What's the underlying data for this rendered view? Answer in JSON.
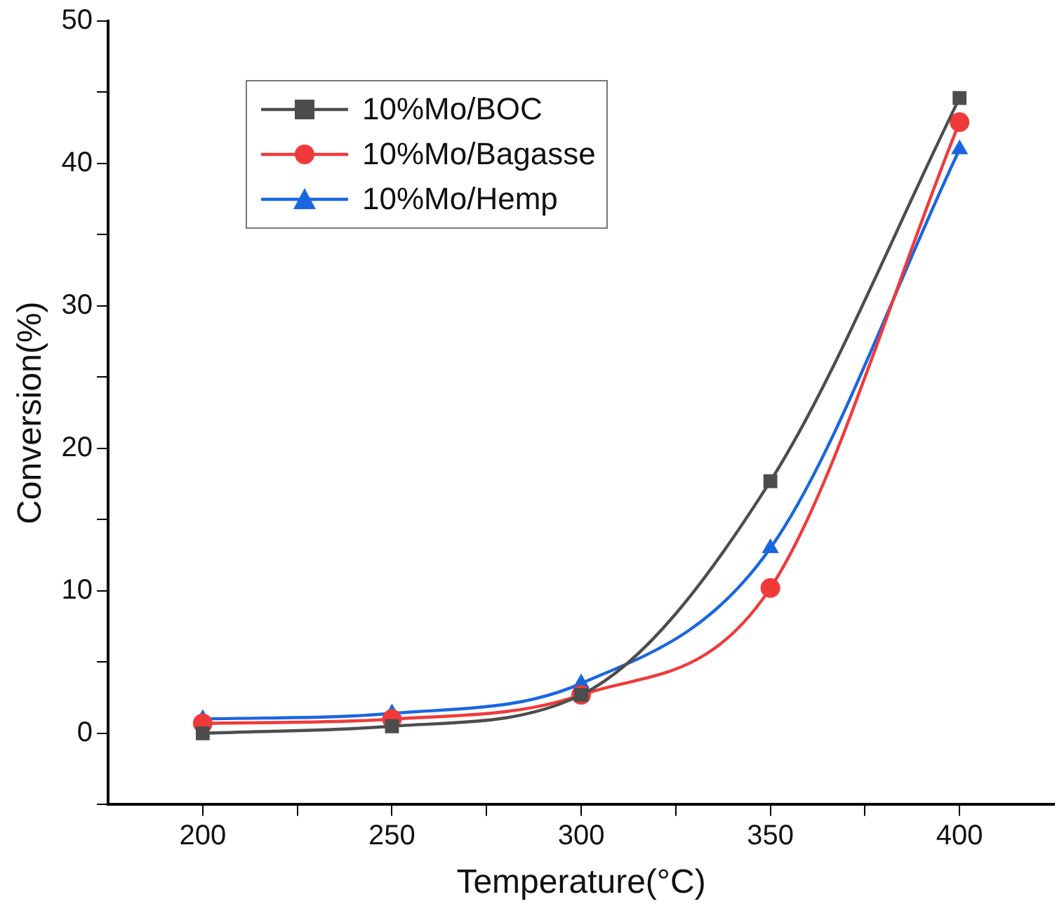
{
  "chart_data": {
    "type": "line",
    "xlabel": "Temperature(°C)",
    "ylabel": "Conversion(%)",
    "x": [
      200,
      250,
      300,
      350,
      400
    ],
    "xlim": [
      175,
      425
    ],
    "xticks": [
      200,
      {
        "value": 225,
        "label": null
      },
      250,
      {
        "value": 275,
        "label": null
      },
      300,
      {
        "value": 325,
        "label": null
      },
      350,
      {
        "value": 375,
        "label": null
      },
      400
    ],
    "ylim": [
      -5,
      50
    ],
    "yticks": [
      {
        "value": -5,
        "label": null
      },
      0,
      {
        "value": 5,
        "label": null
      },
      10,
      {
        "value": 15,
        "label": null
      },
      20,
      {
        "value": 25,
        "label": null
      },
      30,
      {
        "value": 35,
        "label": null
      },
      40,
      {
        "value": 45,
        "label": null
      },
      50
    ],
    "grid": false,
    "legend": "top left",
    "line_style": "solid",
    "series": [
      {
        "name": "10%Mo/BOC",
        "color": "#4d4d4d",
        "marker": "square",
        "values": [
          0,
          0.5,
          2.7,
          17.7,
          44.6
        ]
      },
      {
        "name": "10%Mo/Bagasse",
        "color": "#f03a3a",
        "marker": "circle",
        "values": [
          0.7,
          1.0,
          2.7,
          10.2,
          42.9
        ]
      },
      {
        "name": "10%Mo/Hemp",
        "color": "#1a66e0",
        "marker": "triangle",
        "values": [
          1.0,
          1.4,
          3.5,
          13.0,
          41.0
        ]
      }
    ]
  }
}
